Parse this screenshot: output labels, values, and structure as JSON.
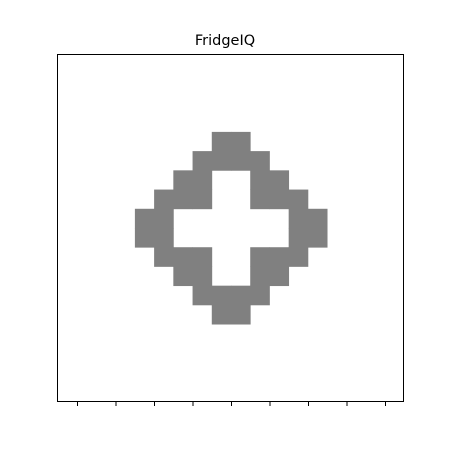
{
  "window": {
    "title": "FridgeIQ"
  },
  "grid": {
    "size": 18,
    "fill_color": "#808080",
    "background": "#ffffff",
    "cells": [
      "..................",
      "..................",
      "..................",
      "..................",
      "........##........",
      ".......####.......",
      "......##..##......",
      ".....###..###.....",
      "....##......##....",
      "....##......##....",
      ".....###..###.....",
      "......##..##......",
      ".......####.......",
      "........##........",
      "..................",
      "..................",
      "..................",
      ".................."
    ]
  },
  "x_axis": {
    "tick_count": 9
  }
}
